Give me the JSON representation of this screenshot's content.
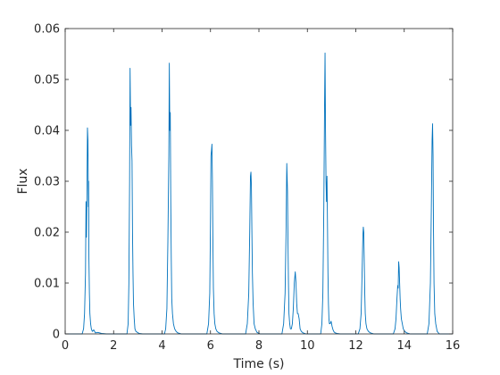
{
  "chart_data": {
    "type": "line",
    "xlabel": "Time (s)",
    "ylabel": "Flux",
    "xlim": [
      0,
      16
    ],
    "ylim": [
      0,
      0.06
    ],
    "xticks": [
      0,
      2,
      4,
      6,
      8,
      10,
      12,
      14,
      16
    ],
    "yticks": [
      0,
      0.01,
      0.02,
      0.03,
      0.04,
      0.05,
      0.06
    ],
    "ytick_labels": [
      "0",
      "0.01",
      "0.02",
      "0.03",
      "0.04",
      "0.05",
      "0.06"
    ],
    "grid": false,
    "box": true,
    "line_color": "#0072BD",
    "series": [
      {
        "x": [
          0.7,
          0.76,
          0.8,
          0.84,
          0.86,
          0.88,
          0.9,
          0.92,
          0.94,
          0.96,
          0.97,
          0.98,
          1.0,
          1.02,
          1.05,
          1.08,
          1.12,
          1.18,
          1.25,
          1.35,
          1.5,
          1.7,
          2.55,
          2.6,
          2.63,
          2.66,
          2.68,
          2.7,
          2.72,
          2.74,
          2.76,
          2.78,
          2.8,
          2.82,
          2.85,
          2.88,
          2.92,
          2.98,
          3.05,
          3.2,
          4.1,
          4.15,
          4.2,
          4.24,
          4.28,
          4.3,
          4.32,
          4.34,
          4.36,
          4.38,
          4.4,
          4.43,
          4.47,
          4.52,
          4.58,
          4.65,
          4.8,
          5.85,
          5.92,
          5.97,
          6.0,
          6.02,
          6.04,
          6.06,
          6.08,
          6.1,
          6.12,
          6.15,
          6.18,
          6.22,
          6.27,
          6.35,
          6.5,
          7.45,
          7.52,
          7.58,
          7.62,
          7.65,
          7.67,
          7.69,
          7.71,
          7.73,
          7.76,
          7.8,
          7.85,
          7.92,
          8.05,
          8.95,
          9.02,
          9.08,
          9.12,
          9.15,
          9.18,
          9.2,
          9.22,
          9.24,
          9.27,
          9.3,
          9.34,
          9.38,
          9.42,
          9.46,
          9.5,
          9.53,
          9.56,
          9.59,
          9.62,
          9.66,
          9.7,
          9.75,
          9.82,
          9.95,
          10.55,
          10.6,
          10.64,
          10.68,
          10.71,
          10.73,
          10.75,
          10.77,
          10.79,
          10.81,
          10.83,
          10.85,
          10.87,
          10.89,
          10.91,
          10.94,
          10.98,
          11.02,
          11.06,
          11.1,
          11.15,
          11.22,
          11.35,
          12.1,
          12.17,
          12.22,
          12.26,
          12.29,
          12.31,
          12.33,
          12.35,
          12.37,
          12.39,
          12.42,
          12.46,
          12.52,
          12.6,
          12.75,
          13.55,
          13.62,
          13.66,
          13.7,
          13.73,
          13.75,
          13.77,
          13.79,
          13.81,
          13.83,
          13.85,
          13.88,
          13.92,
          13.96,
          14.02,
          14.1,
          14.25,
          14.95,
          15.02,
          15.08,
          15.12,
          15.15,
          15.17,
          15.19,
          15.21,
          15.23,
          15.26,
          15.3,
          15.36,
          15.45
        ],
        "y": [
          0,
          0.001,
          0.004,
          0.012,
          0.026,
          0.019,
          0.028,
          0.0405,
          0.038,
          0.025,
          0.03,
          0.015,
          0.008,
          0.004,
          0.002,
          0.001,
          0.0005,
          0.0008,
          0.0002,
          0.0003,
          0.0001,
          0,
          0,
          0.002,
          0.01,
          0.03,
          0.0522,
          0.041,
          0.0445,
          0.037,
          0.034,
          0.02,
          0.012,
          0.006,
          0.003,
          0.001,
          0.0005,
          0.0003,
          0.0001,
          0,
          0,
          0.001,
          0.005,
          0.018,
          0.035,
          0.0532,
          0.04,
          0.0435,
          0.026,
          0.015,
          0.007,
          0.004,
          0.002,
          0.001,
          0.0005,
          0.0002,
          0,
          0,
          0.002,
          0.008,
          0.022,
          0.035,
          0.036,
          0.0373,
          0.03,
          0.018,
          0.009,
          0.004,
          0.002,
          0.001,
          0.0005,
          0.0002,
          0,
          0,
          0.002,
          0.008,
          0.02,
          0.031,
          0.0318,
          0.029,
          0.02,
          0.012,
          0.006,
          0.002,
          0.001,
          0.0003,
          0,
          0,
          0.002,
          0.008,
          0.02,
          0.0335,
          0.028,
          0.018,
          0.01,
          0.004,
          0.002,
          0.001,
          0.001,
          0.002,
          0.005,
          0.01,
          0.0122,
          0.01,
          0.006,
          0.004,
          0.004,
          0.003,
          0.001,
          0.0005,
          0.0002,
          0,
          0,
          0.002,
          0.008,
          0.025,
          0.045,
          0.0552,
          0.04,
          0.03,
          0.026,
          0.031,
          0.022,
          0.012,
          0.006,
          0.003,
          0.002,
          0.002,
          0.0025,
          0.0015,
          0.0008,
          0.0004,
          0.0002,
          0.0001,
          0,
          0,
          0.001,
          0.004,
          0.012,
          0.019,
          0.021,
          0.02,
          0.014,
          0.008,
          0.004,
          0.002,
          0.001,
          0.0005,
          0.0002,
          0,
          0,
          0.001,
          0.003,
          0.007,
          0.0095,
          0.009,
          0.0142,
          0.013,
          0.01,
          0.007,
          0.005,
          0.003,
          0.002,
          0.001,
          0.0005,
          0.0002,
          0,
          0,
          0.002,
          0.01,
          0.025,
          0.038,
          0.0413,
          0.035,
          0.02,
          0.01,
          0.004,
          0.002,
          0.0005,
          0
        ]
      }
    ]
  }
}
